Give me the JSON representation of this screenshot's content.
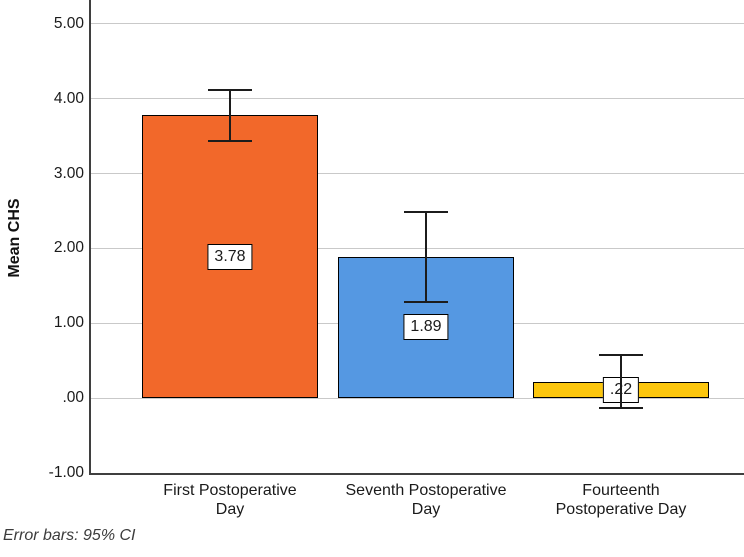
{
  "chart_data": {
    "type": "bar",
    "title": "",
    "xlabel": "",
    "ylabel": "Mean CHS",
    "categories": [
      "First Postoperative Day",
      "Seventh Postoperative Day",
      "Fourteenth Postoperative Day"
    ],
    "category_labels": [
      "First Postoperative\nDay",
      "Seventh Postoperative\nDay",
      "Fourteenth\nPostoperative Day"
    ],
    "values": [
      3.78,
      1.89,
      0.22
    ],
    "value_labels": [
      "3.78",
      "1.89",
      ".22"
    ],
    "error_bars": {
      "kind": "95% CI",
      "low": [
        3.44,
        1.29,
        -0.13
      ],
      "high": [
        4.12,
        2.49,
        0.57
      ]
    },
    "y_ticks": [
      {
        "label": "5.00",
        "value": 5
      },
      {
        "label": "4.00",
        "value": 4
      },
      {
        "label": "3.00",
        "value": 3
      },
      {
        "label": "2.00",
        "value": 2
      },
      {
        "label": "1.00",
        "value": 1
      },
      {
        "label": ".00",
        "value": 0
      },
      {
        "label": "-1.00",
        "value": -1
      }
    ],
    "ylim": [
      -1,
      5.32
    ],
    "grid": "horizontal",
    "legend": "none",
    "footnote": "Error bars: 95% CI",
    "colors": {
      "bars": [
        "#F2682A",
        "#5598E2",
        "#FCC60D"
      ],
      "bar_border": "#000000",
      "gridline": "#C9C9C9",
      "axis": "#3F3F3F",
      "error_bar": "#1C1C1C",
      "background": "#FFFFFF"
    }
  }
}
